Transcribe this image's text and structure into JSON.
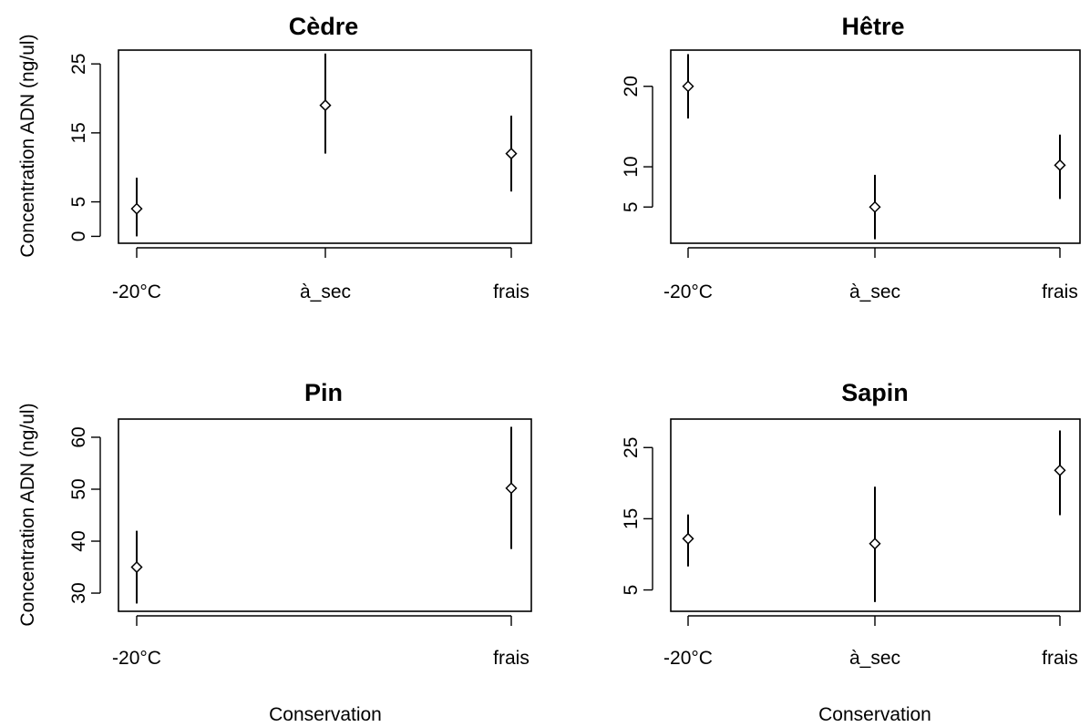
{
  "chart_data": [
    {
      "type": "scatter",
      "title": "Cèdre",
      "ylabel": "Concentration ADN (ng/ul)",
      "xlabel": "",
      "categories": [
        "-20°C",
        "à_sec",
        "frais"
      ],
      "yticks": [
        0,
        5,
        15,
        25
      ],
      "ylim": [
        -1,
        27
      ],
      "series": [
        {
          "values": [
            4,
            19,
            12
          ],
          "lower": [
            0,
            12,
            6.5
          ],
          "upper": [
            8.5,
            26.5,
            17.5
          ]
        }
      ]
    },
    {
      "type": "scatter",
      "title": "Hêtre",
      "ylabel": "",
      "xlabel": "",
      "categories": [
        "-20°C",
        "à_sec",
        "frais"
      ],
      "yticks": [
        5,
        10,
        20
      ],
      "ylim": [
        0.5,
        24.5
      ],
      "series": [
        {
          "values": [
            20,
            5,
            10.2
          ],
          "lower": [
            16,
            1,
            6
          ],
          "upper": [
            24,
            9,
            14
          ]
        }
      ]
    },
    {
      "type": "scatter",
      "title": "Pin",
      "ylabel": "Concentration ADN (ng/ul)",
      "xlabel": "Conservation",
      "categories": [
        "-20°C",
        "frais"
      ],
      "yticks": [
        30,
        40,
        50,
        60
      ],
      "ylim": [
        26.5,
        63.5
      ],
      "series": [
        {
          "values": [
            35,
            50.2
          ],
          "lower": [
            28,
            38.5
          ],
          "upper": [
            42,
            62
          ]
        }
      ]
    },
    {
      "type": "scatter",
      "title": "Sapin",
      "ylabel": "",
      "xlabel": "Conservation",
      "categories": [
        "-20°C",
        "à_sec",
        "frais"
      ],
      "yticks": [
        5,
        15,
        25
      ],
      "ylim": [
        2,
        29
      ],
      "series": [
        {
          "values": [
            12.2,
            11.5,
            21.8
          ],
          "lower": [
            8.3,
            3.3,
            15.5
          ],
          "upper": [
            15.6,
            19.5,
            27.4
          ]
        }
      ]
    }
  ]
}
